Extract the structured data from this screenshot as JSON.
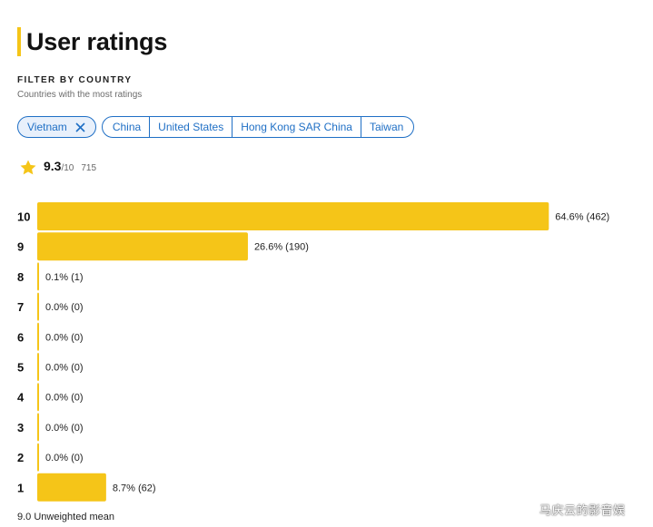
{
  "header": {
    "title": "User ratings"
  },
  "filter": {
    "label": "FILTER BY COUNTRY",
    "sublabel": "Countries with the most ratings",
    "active_country": "Vietnam",
    "countries": [
      "China",
      "United States",
      "Hong Kong SAR China",
      "Taiwan"
    ]
  },
  "summary": {
    "score": "9.3",
    "max": "/10",
    "count": "715"
  },
  "colors": {
    "bar": "#f5c518",
    "accent": "#1f6fc5"
  },
  "chart_data": {
    "type": "bar",
    "orientation": "horizontal",
    "categories": [
      "10",
      "9",
      "8",
      "7",
      "6",
      "5",
      "4",
      "3",
      "2",
      "1"
    ],
    "percents": [
      64.6,
      26.6,
      0.1,
      0.0,
      0.0,
      0.0,
      0.0,
      0.0,
      0.0,
      8.7
    ],
    "values": [
      462,
      190,
      1,
      0,
      0,
      0,
      0,
      0,
      0,
      62
    ],
    "labels": [
      "64.6% (462)",
      "26.6% (190)",
      "0.1% (1)",
      "0.0% (0)",
      "0.0% (0)",
      "0.0% (0)",
      "0.0% (0)",
      "0.0% (0)",
      "0.0% (0)",
      "8.7% (62)"
    ]
  },
  "footer": {
    "mean": "9.0 Unweighted mean"
  },
  "watermark": "马庆云的影音娱"
}
